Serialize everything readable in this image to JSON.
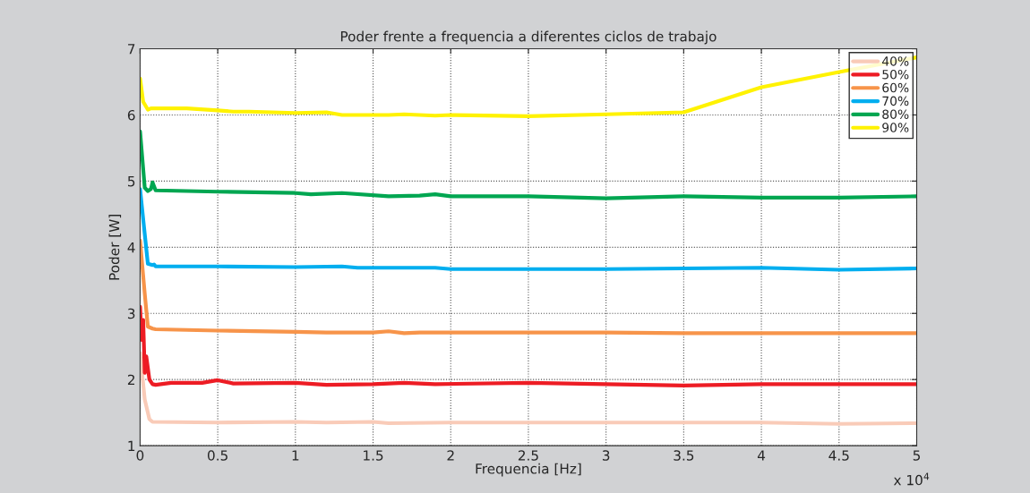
{
  "chart_data": {
    "type": "line",
    "title": "Poder frente a frequencia a diferentes ciclos de trabajo",
    "xlabel": "Frequencia [Hz]",
    "ylabel": "Poder [W]",
    "annotations": [
      "x 10$^{4}$"
    ],
    "xlim": [
      0,
      5
    ],
    "xticks": [
      0,
      0.5,
      1,
      1.5,
      2,
      2.5,
      3,
      3.5,
      4,
      4.5,
      5
    ],
    "ylim": [
      1,
      7
    ],
    "yticks": [
      1,
      2,
      3,
      4,
      5,
      6,
      7
    ],
    "grid": true,
    "legend": "top right",
    "line_style": "solid",
    "marker": "none",
    "series": [
      {
        "name": "40%",
        "color": "#f9cbb8",
        "x": [
          0,
          0.03,
          0.06,
          0.08,
          0.5,
          1.0,
          1.2,
          1.5,
          1.6,
          2.0,
          4.0,
          4.5,
          5.0
        ],
        "values": [
          2.4,
          1.7,
          1.4,
          1.36,
          1.35,
          1.36,
          1.35,
          1.36,
          1.34,
          1.35,
          1.35,
          1.33,
          1.34
        ]
      },
      {
        "name": "50%",
        "color": "#ed1c24",
        "x": [
          0,
          0.01,
          0.02,
          0.03,
          0.04,
          0.06,
          0.08,
          0.1,
          0.2,
          0.4,
          0.5,
          0.6,
          1.0,
          1.2,
          1.5,
          1.7,
          1.9,
          2.5,
          3.0,
          3.5,
          4.0,
          5.0
        ],
        "values": [
          3.1,
          2.6,
          2.9,
          2.1,
          2.35,
          2.0,
          1.93,
          1.92,
          1.95,
          1.95,
          1.99,
          1.94,
          1.95,
          1.92,
          1.93,
          1.95,
          1.93,
          1.95,
          1.93,
          1.91,
          1.93,
          1.93
        ]
      },
      {
        "name": "60%",
        "color": "#f7944a",
        "x": [
          0,
          0.03,
          0.05,
          0.08,
          0.1,
          0.5,
          1.0,
          1.2,
          1.5,
          1.6,
          1.7,
          1.8,
          2.0,
          3.0,
          3.5,
          5.0
        ],
        "values": [
          4.1,
          3.3,
          2.8,
          2.77,
          2.76,
          2.74,
          2.72,
          2.71,
          2.71,
          2.73,
          2.7,
          2.71,
          2.71,
          2.71,
          2.7,
          2.7
        ]
      },
      {
        "name": "70%",
        "color": "#00aeef",
        "x": [
          0,
          0.03,
          0.05,
          0.08,
          0.09,
          0.1,
          0.5,
          1.0,
          1.3,
          1.4,
          1.9,
          2.0,
          3.0,
          3.5,
          4.0,
          4.5,
          5.0
        ],
        "values": [
          4.88,
          4.2,
          3.75,
          3.73,
          3.74,
          3.71,
          3.71,
          3.7,
          3.71,
          3.69,
          3.69,
          3.67,
          3.67,
          3.68,
          3.69,
          3.66,
          3.68
        ]
      },
      {
        "name": "80%",
        "color": "#00a651",
        "x": [
          0,
          0.03,
          0.05,
          0.07,
          0.08,
          0.1,
          0.5,
          1.0,
          1.1,
          1.3,
          1.6,
          1.8,
          1.9,
          2.0,
          2.5,
          3.0,
          3.5,
          4.0,
          4.5,
          5.0
        ],
        "values": [
          5.75,
          4.9,
          4.85,
          4.88,
          4.98,
          4.86,
          4.84,
          4.82,
          4.8,
          4.82,
          4.77,
          4.78,
          4.8,
          4.77,
          4.77,
          4.74,
          4.77,
          4.75,
          4.75,
          4.77
        ]
      },
      {
        "name": "90%",
        "color": "#fff200",
        "x": [
          0,
          0.02,
          0.05,
          0.07,
          0.1,
          0.3,
          0.5,
          0.6,
          0.7,
          1.0,
          1.2,
          1.3,
          1.6,
          1.7,
          1.9,
          2.0,
          2.5,
          3.0,
          3.5,
          4.0,
          4.5,
          5.0
        ],
        "values": [
          6.55,
          6.2,
          6.08,
          6.1,
          6.1,
          6.1,
          6.07,
          6.05,
          6.05,
          6.03,
          6.04,
          6.0,
          6.0,
          6.01,
          5.99,
          6.0,
          5.98,
          6.01,
          6.04,
          6.42,
          6.65,
          6.87
        ]
      }
    ]
  }
}
